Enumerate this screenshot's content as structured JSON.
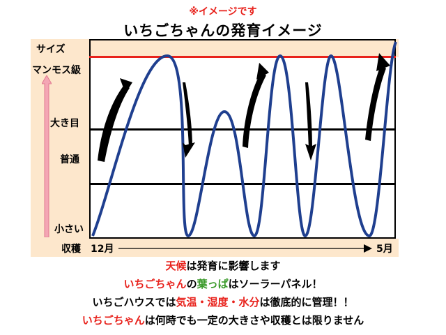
{
  "note": "※イメージです",
  "title": "いちごちゃんの発育イメージ",
  "y_labels": {
    "size": "サイズ",
    "mammoth": "マンモス級",
    "big": "大き目",
    "normal": "普通",
    "small": "小さい"
  },
  "x_labels": {
    "harvest": "収穫",
    "start": "12月",
    "end": "5月"
  },
  "captions": [
    [
      {
        "text": "天候",
        "style": "red"
      },
      {
        "text": "は発育に影響します",
        "style": ""
      }
    ],
    [
      {
        "text": "いちごちゃん",
        "style": "red"
      },
      {
        "text": "の",
        "style": ""
      },
      {
        "text": "葉っぱ",
        "style": "green"
      },
      {
        "text": "はソーラーパネル！",
        "style": ""
      }
    ],
    [
      {
        "text": "いちごハウスでは",
        "style": ""
      },
      {
        "text": "気温・湿度・水分",
        "style": "red"
      },
      {
        "text": "は徹底的に管理！！",
        "style": ""
      }
    ],
    [
      {
        "text": "いちごちゃん",
        "style": "red"
      },
      {
        "text": "は何時でも一定の大きさや収穫とは限りません",
        "style": ""
      }
    ]
  ],
  "colors": {
    "max_line": "#e8221c",
    "band": "#fde7cc",
    "curve": "#1f3f8f",
    "arrow": "#000000",
    "axis_arrow": "#f4a6b4"
  }
}
